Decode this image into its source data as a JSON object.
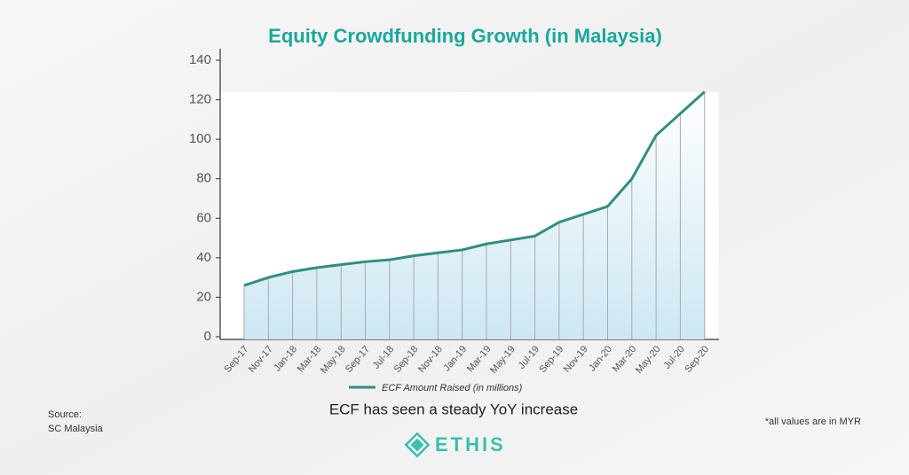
{
  "chart_data": {
    "type": "line",
    "title": "Equity Crowdfunding Growth (in Malaysia)",
    "subtitle": "ECF has seen a steady YoY increase",
    "source_label": "Source:",
    "source": "SC Malaysia",
    "note": "*all values are in MYR",
    "brand": "ETHIS",
    "categories": [
      "Sep-17",
      "Nov-17",
      "Jan-18",
      "Mar-18",
      "May-18",
      "Sep-17",
      "Jul-18",
      "Sep-18",
      "Nov-18",
      "Jan-19",
      "Mar-19",
      "May-19",
      "Jul-19",
      "Sep-19",
      "Nov-19",
      "Jan-20",
      "Mar-20",
      "May-20",
      "Jul-20",
      "Sep-20"
    ],
    "series": [
      {
        "name": "ECF Amount Raised (in millions)",
        "color": "#2f8f80",
        "values": [
          26,
          30,
          33,
          35,
          36.5,
          38,
          39,
          41,
          42.5,
          44,
          47,
          49,
          51,
          58,
          62,
          66,
          80,
          102,
          113,
          124
        ]
      }
    ],
    "ylim": [
      0,
      140
    ],
    "yticks": [
      0,
      20,
      40,
      60,
      80,
      100,
      120,
      140
    ]
  }
}
